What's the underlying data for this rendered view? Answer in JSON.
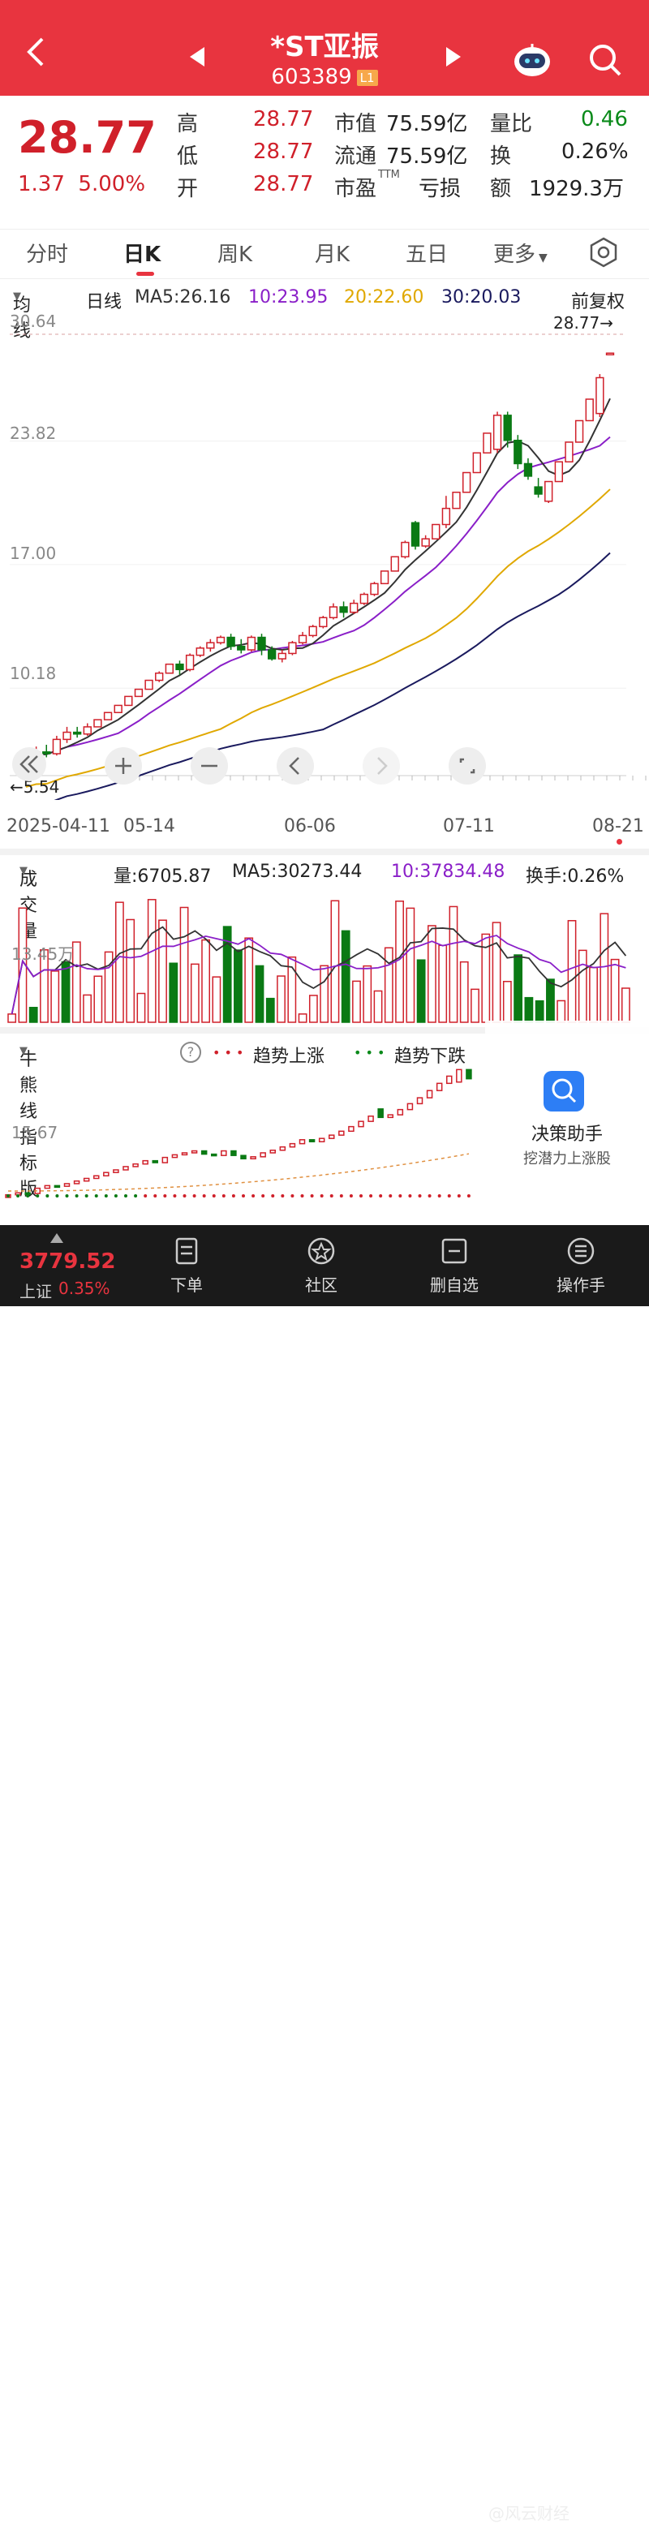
{
  "header": {
    "title": "*ST亚振",
    "code": "603389",
    "level_badge": "L1"
  },
  "quote": {
    "price": "28.77",
    "change": "1.37",
    "change_pct": "5.00%",
    "high_label": "高",
    "high": "28.77",
    "low_label": "低",
    "low": "28.77",
    "open_label": "开",
    "open": "28.77",
    "mktcap_label": "市值",
    "mktcap": "75.59亿",
    "float_label": "流通",
    "float": "75.59亿",
    "pe_label": "市盈",
    "pe_sup": "TTM",
    "pe": "亏损",
    "vol_ratio_label": "量比",
    "vol_ratio": "0.46",
    "turnover_label": "换",
    "turnover": "0.26%",
    "amount_label": "额",
    "amount": "1929.3万"
  },
  "tabs": [
    "分时",
    "日K",
    "周K",
    "月K",
    "五日",
    "更多"
  ],
  "active_tab": "日K",
  "ma_bar": {
    "dropdown": "均线",
    "period": "日线",
    "ma5": "MA5:26.16",
    "ma10": "10:23.95",
    "ma20": "20:22.60",
    "ma30": "30:20.03",
    "adjust": "前复权"
  },
  "price_axis": [
    "30.64",
    "23.82",
    "17.00",
    "10.18"
  ],
  "last_price_marker": "28.77→",
  "min_price_marker": "←5.54",
  "dates": [
    "2025-04-11",
    "05-14",
    "06-06",
    "07-11",
    "08-21"
  ],
  "volume_bar": {
    "dropdown": "成交量",
    "vol": "量:6705.87",
    "ma5": "MA5:30273.44",
    "ma10": "10:37834.48",
    "turnover": "换手:0.26%"
  },
  "volume_axis": "13.45万",
  "indicator_bar": {
    "dropdown": "牛熊线指标版",
    "help": "?",
    "bull": "趋势上涨",
    "bear": "趋势下跌"
  },
  "indicator_axis": "15.67",
  "assistant": {
    "title": "决策助手",
    "subtitle": "挖潜力上涨股"
  },
  "bottom": {
    "index_value": "3779.52",
    "index_name": "上证",
    "index_pct": "0.35%",
    "nav": [
      "下单",
      "社区",
      "删自选",
      "操作手"
    ],
    "watermark": "@风云财经"
  },
  "colors": {
    "up": "#d0202a",
    "down": "#0a7a14",
    "ma5": "#333333",
    "ma10": "#8a1fc8",
    "ma20": "#e0a800",
    "ma30": "#1a1a5e",
    "header": "#e8343f"
  },
  "chart_data": {
    "type": "candlestick",
    "ylim": [
      5.54,
      30.64
    ],
    "candles": [
      {
        "o": 5.8,
        "c": 6.2,
        "h": 6.4,
        "l": 5.6
      },
      {
        "o": 6.2,
        "c": 6.5,
        "h": 6.8,
        "l": 6.0
      },
      {
        "o": 6.5,
        "c": 6.4,
        "h": 6.9,
        "l": 6.2
      },
      {
        "o": 6.4,
        "c": 7.2,
        "h": 7.4,
        "l": 6.3
      },
      {
        "o": 7.2,
        "c": 7.6,
        "h": 7.9,
        "l": 7.0
      },
      {
        "o": 7.6,
        "c": 7.5,
        "h": 7.9,
        "l": 7.3
      },
      {
        "o": 7.5,
        "c": 7.9,
        "h": 8.1,
        "l": 7.4
      },
      {
        "o": 7.9,
        "c": 8.3,
        "h": 8.3,
        "l": 7.9
      },
      {
        "o": 8.3,
        "c": 8.7,
        "h": 8.7,
        "l": 8.3
      },
      {
        "o": 8.7,
        "c": 9.1,
        "h": 9.1,
        "l": 8.7
      },
      {
        "o": 9.1,
        "c": 9.6,
        "h": 9.6,
        "l": 9.1
      },
      {
        "o": 9.6,
        "c": 10.0,
        "h": 10.0,
        "l": 9.6
      },
      {
        "o": 10.0,
        "c": 10.5,
        "h": 10.5,
        "l": 10.0
      },
      {
        "o": 10.5,
        "c": 10.9,
        "h": 11.0,
        "l": 10.4
      },
      {
        "o": 10.9,
        "c": 11.4,
        "h": 11.4,
        "l": 10.9
      },
      {
        "o": 11.4,
        "c": 11.1,
        "h": 11.6,
        "l": 10.8
      },
      {
        "o": 11.1,
        "c": 11.9,
        "h": 12.0,
        "l": 11.0
      },
      {
        "o": 11.9,
        "c": 12.3,
        "h": 12.4,
        "l": 11.8
      },
      {
        "o": 12.3,
        "c": 12.6,
        "h": 12.8,
        "l": 12.1
      },
      {
        "o": 12.6,
        "c": 12.9,
        "h": 13.0,
        "l": 12.5
      },
      {
        "o": 12.9,
        "c": 12.4,
        "h": 13.1,
        "l": 12.2
      },
      {
        "o": 12.4,
        "c": 12.2,
        "h": 12.8,
        "l": 12.0
      },
      {
        "o": 12.2,
        "c": 12.9,
        "h": 13.0,
        "l": 12.1
      },
      {
        "o": 12.9,
        "c": 12.2,
        "h": 13.1,
        "l": 11.9
      },
      {
        "o": 12.2,
        "c": 11.7,
        "h": 12.4,
        "l": 11.6
      },
      {
        "o": 11.7,
        "c": 12.0,
        "h": 12.2,
        "l": 11.5
      },
      {
        "o": 12.0,
        "c": 12.6,
        "h": 12.7,
        "l": 11.9
      },
      {
        "o": 12.6,
        "c": 13.0,
        "h": 13.2,
        "l": 12.5
      },
      {
        "o": 13.0,
        "c": 13.5,
        "h": 13.6,
        "l": 12.9
      },
      {
        "o": 13.5,
        "c": 14.0,
        "h": 14.1,
        "l": 13.4
      },
      {
        "o": 14.0,
        "c": 14.6,
        "h": 14.8,
        "l": 13.9
      },
      {
        "o": 14.6,
        "c": 14.3,
        "h": 14.9,
        "l": 14.0
      },
      {
        "o": 14.3,
        "c": 14.8,
        "h": 15.0,
        "l": 14.2
      },
      {
        "o": 14.8,
        "c": 15.3,
        "h": 15.4,
        "l": 14.7
      },
      {
        "o": 15.3,
        "c": 15.9,
        "h": 16.0,
        "l": 15.2
      },
      {
        "o": 15.9,
        "c": 16.6,
        "h": 16.6,
        "l": 15.9
      },
      {
        "o": 16.6,
        "c": 17.4,
        "h": 17.4,
        "l": 16.6
      },
      {
        "o": 17.4,
        "c": 18.2,
        "h": 18.3,
        "l": 17.3
      },
      {
        "o": 19.3,
        "c": 18.0,
        "h": 19.4,
        "l": 17.8
      },
      {
        "o": 18.0,
        "c": 18.4,
        "h": 18.6,
        "l": 17.9
      },
      {
        "o": 18.4,
        "c": 19.2,
        "h": 19.2,
        "l": 18.4
      },
      {
        "o": 19.2,
        "c": 20.1,
        "h": 20.8,
        "l": 19.0
      },
      {
        "o": 20.1,
        "c": 21.0,
        "h": 21.0,
        "l": 20.1
      },
      {
        "o": 21.0,
        "c": 22.1,
        "h": 22.1,
        "l": 21.0
      },
      {
        "o": 22.1,
        "c": 23.2,
        "h": 23.2,
        "l": 22.1
      },
      {
        "o": 23.2,
        "c": 24.3,
        "h": 24.3,
        "l": 23.2
      },
      {
        "o": 23.4,
        "c": 25.3,
        "h": 25.5,
        "l": 23.2
      },
      {
        "o": 25.3,
        "c": 23.9,
        "h": 25.5,
        "l": 23.5
      },
      {
        "o": 23.9,
        "c": 22.6,
        "h": 24.2,
        "l": 22.3
      },
      {
        "o": 22.6,
        "c": 21.9,
        "h": 22.9,
        "l": 21.7
      },
      {
        "o": 21.3,
        "c": 20.9,
        "h": 21.8,
        "l": 20.7
      },
      {
        "o": 20.5,
        "c": 21.6,
        "h": 21.6,
        "l": 20.4
      },
      {
        "o": 21.6,
        "c": 22.7,
        "h": 22.7,
        "l": 21.6
      },
      {
        "o": 22.7,
        "c": 23.8,
        "h": 23.8,
        "l": 22.7
      },
      {
        "o": 23.8,
        "c": 25.0,
        "h": 25.0,
        "l": 23.8
      },
      {
        "o": 25.0,
        "c": 26.2,
        "h": 26.2,
        "l": 25.0
      },
      {
        "o": 25.4,
        "c": 27.4,
        "h": 27.6,
        "l": 25.2
      },
      {
        "o": 28.77,
        "c": 28.77,
        "h": 28.77,
        "l": 28.77
      }
    ],
    "volume_ylim": [
      0,
      160000
    ]
  }
}
